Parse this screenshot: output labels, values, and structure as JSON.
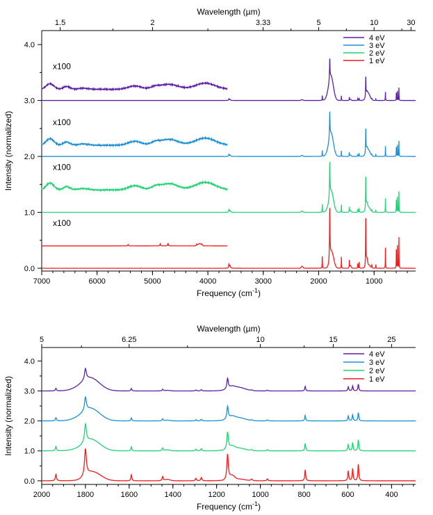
{
  "chart_data": [
    {
      "type": "line",
      "title": "",
      "xlabel": "Frequency (cm",
      "xlabel_sup": "-1",
      "xlabel_tail": ")",
      "ylabel": "Intensity (normalized)",
      "top_axis_label": "Wavelength (µm)",
      "xlim": [
        7000,
        250
      ],
      "ylim": [
        -0.05,
        4.25
      ],
      "x_ticks": [
        7000,
        6000,
        5000,
        4000,
        3000,
        2000,
        1000
      ],
      "x_tick_labels": [
        "7000",
        "6000",
        "5000",
        "4000",
        "3000",
        "2000",
        "1000"
      ],
      "x_minor_step": 200,
      "y_ticks": [
        0,
        1,
        2,
        3,
        4
      ],
      "y_tick_labels": [
        "0.0",
        "1.0",
        "2.0",
        "3.0",
        "4.0"
      ],
      "top_ticks": [
        1.5,
        2,
        3.33,
        5,
        10,
        30
      ],
      "top_tick_labels": [
        "1.5",
        "2",
        "3.33",
        "5",
        "10",
        "30"
      ],
      "legend": [
        "4 eV",
        "3 eV",
        "2 eV",
        "1 eV"
      ],
      "legend_position": "top-right",
      "annotations": [
        "x100",
        "x100",
        "x100",
        "x100"
      ],
      "series": [
        {
          "name": "4 eV",
          "color": "#5b1fa6",
          "offset": 3.0,
          "inset_offset": 3.2,
          "ir_scale": 0.38,
          "nir_amp": 0.12
        },
        {
          "name": "3 eV",
          "color": "#1a8fd6",
          "offset": 2.0,
          "inset_offset": 2.2,
          "ir_scale": 0.46,
          "nir_amp": 0.14
        },
        {
          "name": "2 eV",
          "color": "#1fd274",
          "offset": 1.0,
          "inset_offset": 1.4,
          "ir_scale": 0.62,
          "nir_amp": 0.15
        },
        {
          "name": "1 eV",
          "color": "#f21a1a",
          "offset": 0.0,
          "inset_offset": 0.4,
          "ir_scale": 0.92,
          "nir_amp": 0.0
        }
      ]
    },
    {
      "type": "line",
      "title": "",
      "xlabel": "Frequency (cm",
      "xlabel_sup": "-1",
      "xlabel_tail": ")",
      "ylabel": "Intensity (normalized)",
      "top_axis_label": "Wavelength (µm)",
      "xlim": [
        2000,
        290
      ],
      "ylim": [
        -0.12,
        4.45
      ],
      "x_ticks": [
        2000,
        1800,
        1600,
        1400,
        1200,
        1000,
        800,
        600,
        400
      ],
      "x_tick_labels": [
        "2000",
        "1800",
        "1600",
        "1400",
        "1200",
        "1000",
        "800",
        "600",
        "400"
      ],
      "x_minor_step": 50,
      "y_ticks": [
        0,
        1,
        2,
        3,
        4
      ],
      "y_tick_labels": [
        "0.0",
        "1.0",
        "2.0",
        "3.0",
        "4.0"
      ],
      "top_ticks": [
        5,
        6.25,
        10,
        15,
        25
      ],
      "top_tick_labels": [
        "5",
        "6.25",
        "10",
        "15",
        "25"
      ],
      "legend": [
        "4 eV",
        "3 eV",
        "2 eV",
        "1 eV"
      ],
      "legend_position": "top-right",
      "series": [
        {
          "name": "4 eV",
          "color": "#5b1fa6",
          "offset": 3.0,
          "ir_scale": 0.38
        },
        {
          "name": "3 eV",
          "color": "#1a8fd6",
          "offset": 2.0,
          "ir_scale": 0.46
        },
        {
          "name": "2 eV",
          "color": "#1fd274",
          "offset": 1.0,
          "ir_scale": 0.62
        },
        {
          "name": "1 eV",
          "color": "#f21a1a",
          "offset": 0.0,
          "ir_scale": 0.92
        }
      ]
    }
  ]
}
